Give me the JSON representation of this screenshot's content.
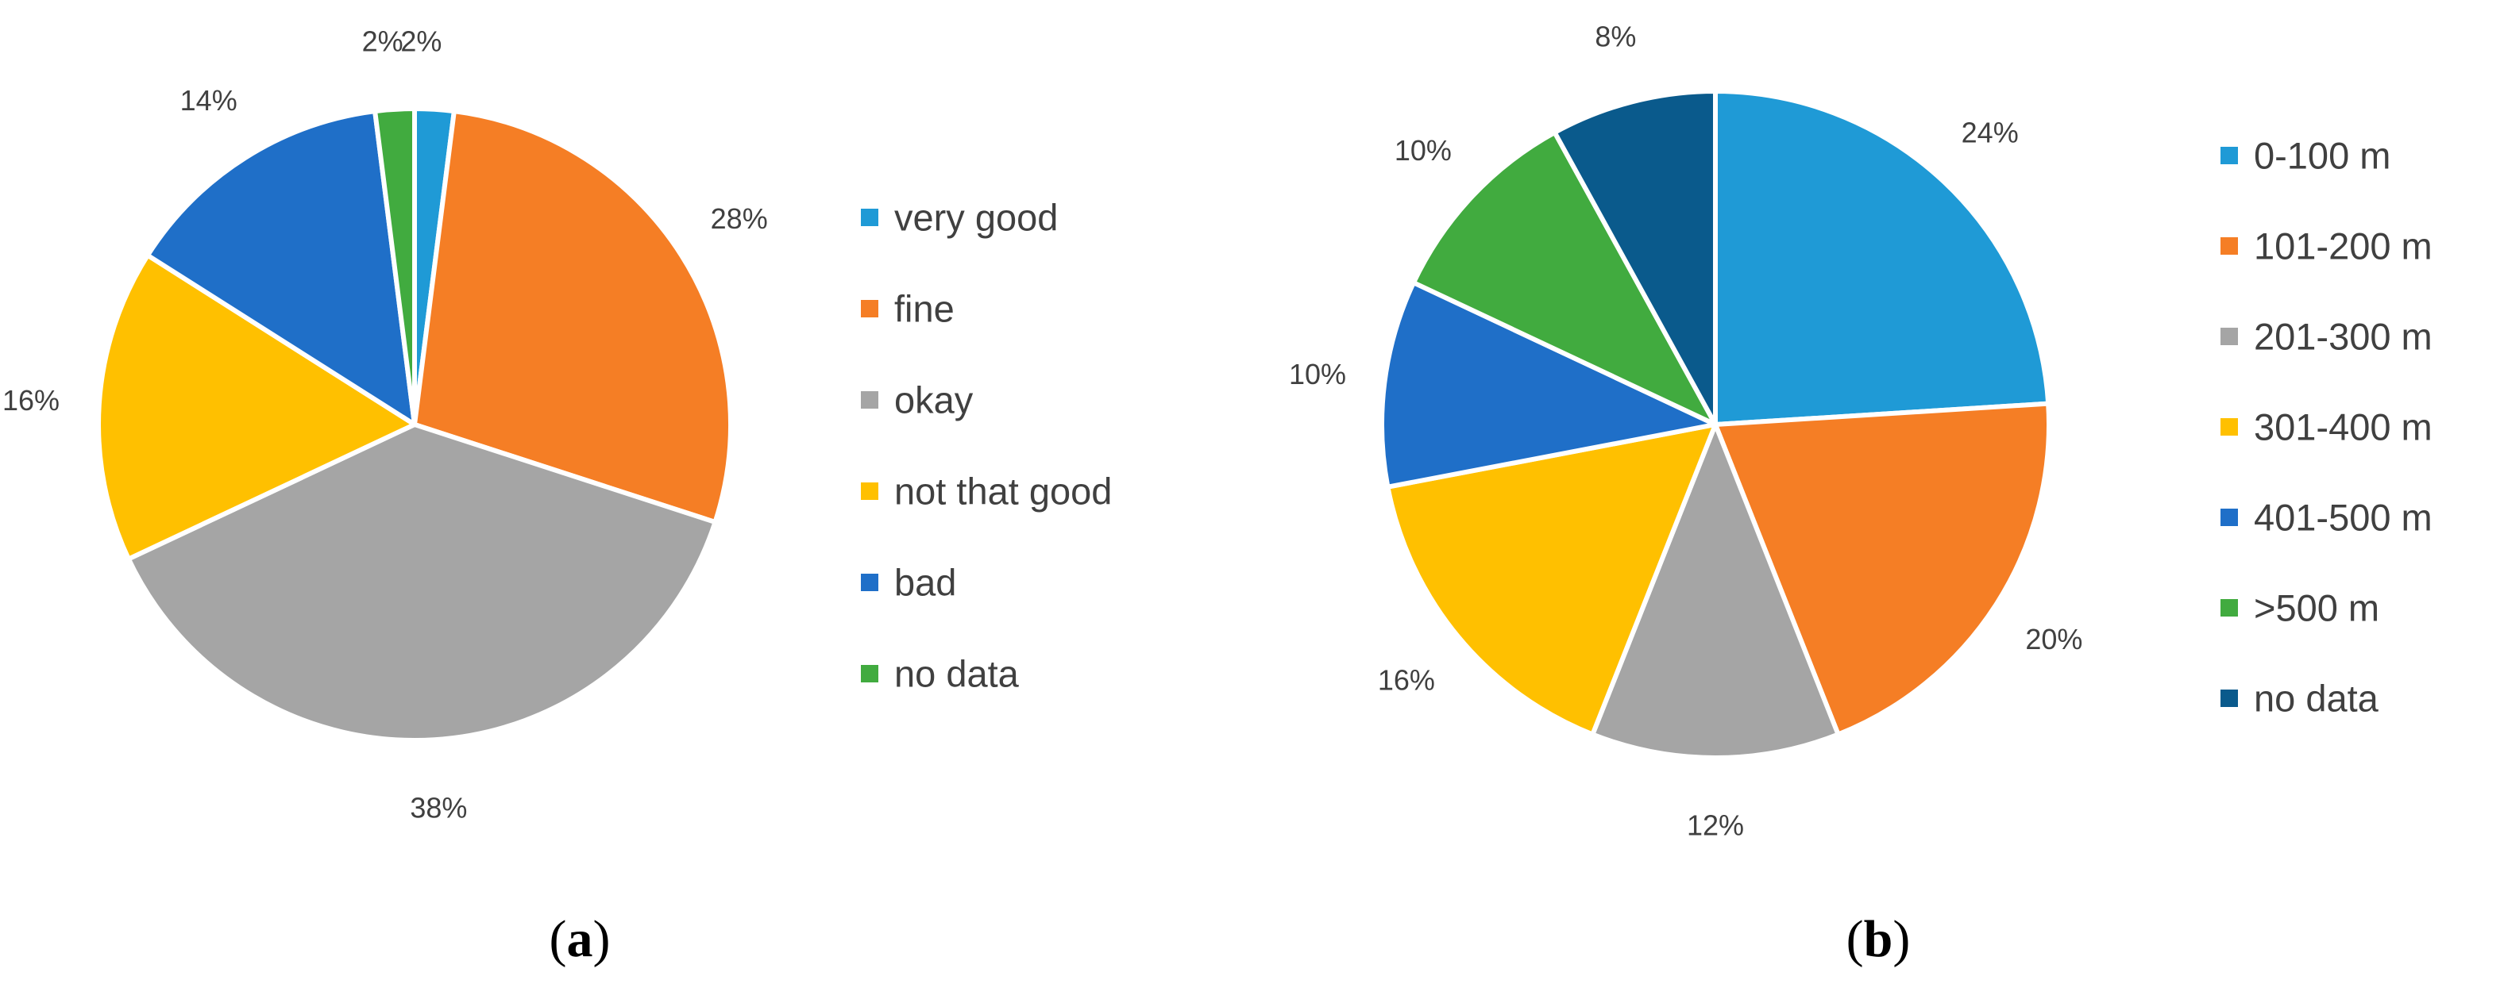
{
  "chart_data": [
    {
      "panel": "(a)",
      "panel_prefix": "(",
      "panel_letter": "a",
      "panel_suffix": ")",
      "type": "pie",
      "categories": [
        "very good",
        "fine",
        "okay",
        "not that good",
        "bad",
        "no data"
      ],
      "values": [
        2,
        28,
        38,
        16,
        14,
        2
      ],
      "data_labels": [
        "2%",
        "28%",
        "38%",
        "16%",
        "14%",
        "2%"
      ],
      "colors": [
        "#1f9ad6",
        "#f57e25",
        "#a5a5a5",
        "#ffc000",
        "#1f6fc8",
        "#41ab3f"
      ],
      "start_angle_deg": 0,
      "direction": "clockwise",
      "legend_position": "right"
    },
    {
      "panel": "(b)",
      "panel_prefix": "(",
      "panel_letter": "b",
      "panel_suffix": ")",
      "type": "pie",
      "categories": [
        "0-100 m",
        "101-200 m",
        "201-300 m",
        "301-400 m",
        "401-500 m",
        ">500 m",
        "no data"
      ],
      "values": [
        24,
        20,
        12,
        16,
        10,
        10,
        8
      ],
      "data_labels": [
        "24%",
        "20%",
        "12%",
        "16%",
        "10%",
        "10%",
        "8%"
      ],
      "colors": [
        "#1f9ad6",
        "#f57e25",
        "#a5a5a5",
        "#ffc000",
        "#1f6fc8",
        "#41ab3f",
        "#0a5a8c"
      ],
      "start_angle_deg": 0,
      "direction": "clockwise",
      "legend_position": "right"
    }
  ]
}
